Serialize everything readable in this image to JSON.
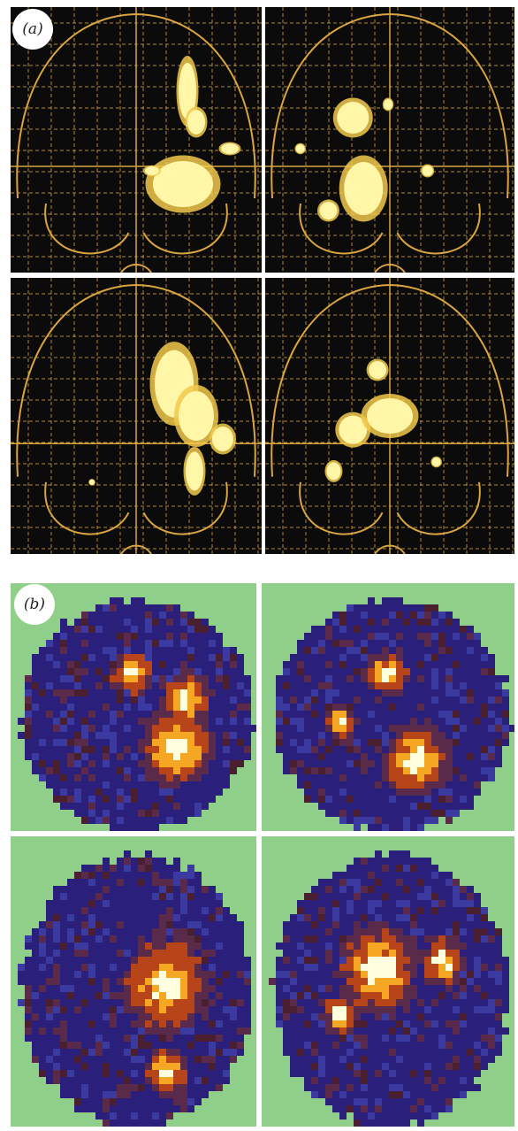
{
  "figure": {
    "panel_a_label": "(a)",
    "panel_b_label": "(b)"
  },
  "colors": {
    "background": "#ffffff",
    "glass_brain_bg": "#0b0b0b",
    "glass_brain_outline": "#d9a441",
    "glass_brain_blob": "#fff6a8",
    "pixel_map_bg": "#8fcf8a",
    "pixel_map_low": "#2a1f7a",
    "pixel_map_mid": "#b8451a",
    "pixel_map_high": "#ffffe0"
  }
}
